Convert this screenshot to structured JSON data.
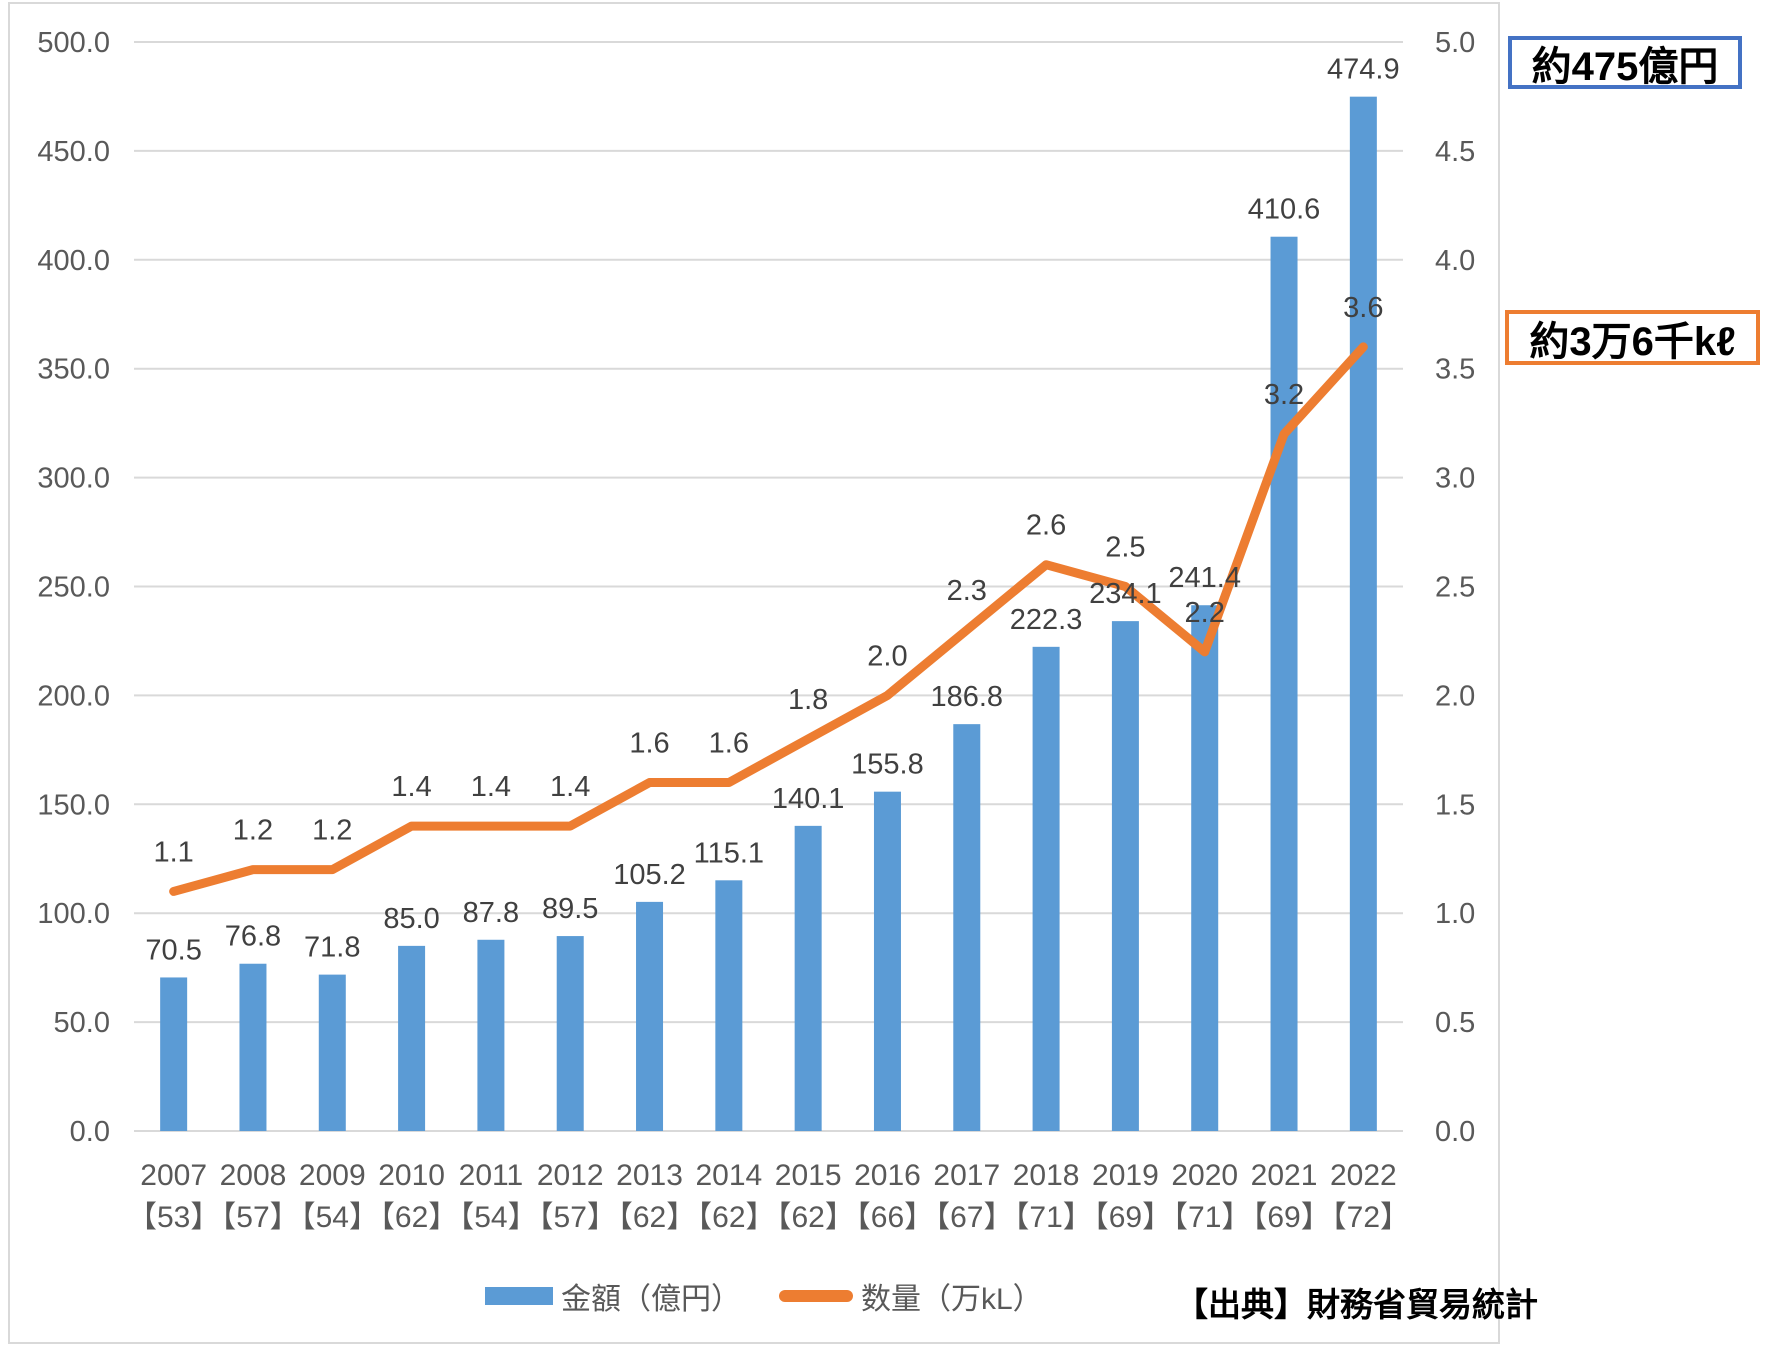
{
  "colors": {
    "bar": "#5B9BD5",
    "line": "#ED7D31",
    "gridline": "#D9D9D9",
    "axis_label": "#595959",
    "data_label": "#404040",
    "callout_amount_border": "#4472C4",
    "callout_quantity_border": "#ED7D31",
    "frame_border": "#D9D9D9"
  },
  "chart_data": {
    "type": "bar+line combo",
    "categories": [
      "2007",
      "2008",
      "2009",
      "2010",
      "2011",
      "2012",
      "2013",
      "2014",
      "2015",
      "2016",
      "2017",
      "2018",
      "2019",
      "2020",
      "2021",
      "2022"
    ],
    "category_sublabels": [
      "【53】",
      "【57】",
      "【54】",
      "【62】",
      "【54】",
      "【57】",
      "【62】",
      "【62】",
      "【62】",
      "【66】",
      "【67】",
      "【71】",
      "【69】",
      "【71】",
      "【69】",
      "【72】"
    ],
    "series": [
      {
        "name": "金額（億円）",
        "type": "bar",
        "axis": "left",
        "values": [
          70.5,
          76.8,
          71.8,
          85.0,
          87.8,
          89.5,
          105.2,
          115.1,
          140.1,
          155.8,
          186.8,
          222.3,
          234.1,
          241.4,
          410.6,
          474.9
        ]
      },
      {
        "name": "数量（万kL）",
        "type": "line",
        "axis": "right",
        "values": [
          1.1,
          1.2,
          1.2,
          1.4,
          1.4,
          1.4,
          1.6,
          1.6,
          1.8,
          2.0,
          2.3,
          2.6,
          2.5,
          2.2,
          3.2,
          3.6
        ]
      }
    ],
    "left_axis": {
      "min": 0,
      "max": 500,
      "step": 50,
      "tick_labels": [
        "0.0",
        "50.0",
        "100.0",
        "150.0",
        "200.0",
        "250.0",
        "300.0",
        "350.0",
        "400.0",
        "450.0",
        "500.0"
      ]
    },
    "right_axis": {
      "min": 0,
      "max": 5,
      "step": 0.5,
      "tick_labels": [
        "0.0",
        "0.5",
        "1.0",
        "1.5",
        "2.0",
        "2.5",
        "3.0",
        "3.5",
        "4.0",
        "4.5",
        "5.0"
      ]
    },
    "grid": true,
    "legend_position": "bottom",
    "data_labels": true
  },
  "legend": {
    "amount_label": "金額（億円）",
    "quantity_label": "数量（万kL）"
  },
  "callouts": {
    "amount": {
      "text": "約475億円"
    },
    "quantity": {
      "text": "約3万6千kℓ"
    }
  },
  "source": "【出典】財務省貿易統計"
}
